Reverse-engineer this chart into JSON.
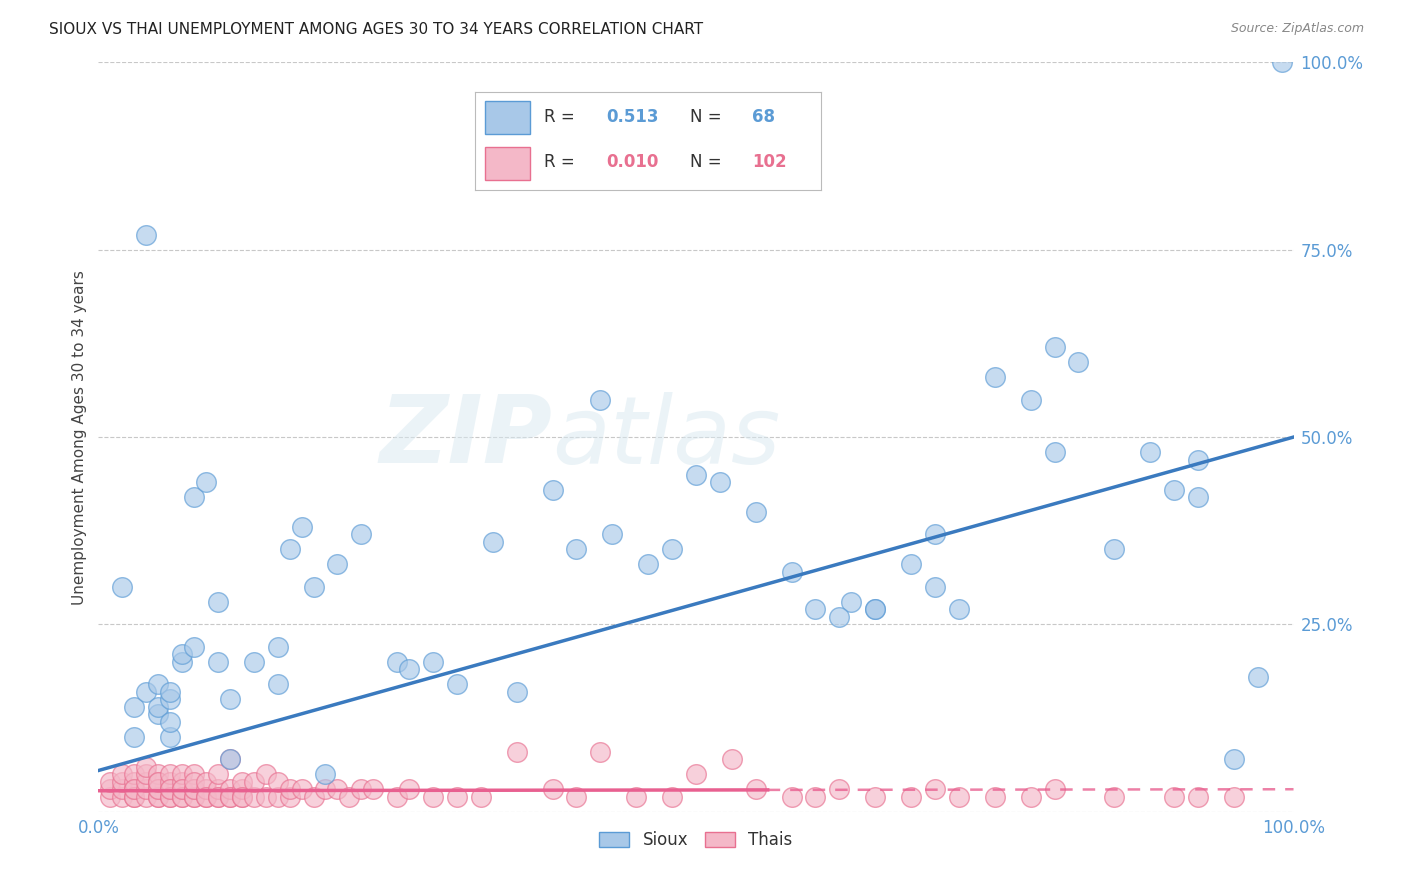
{
  "title": "SIOUX VS THAI UNEMPLOYMENT AMONG AGES 30 TO 34 YEARS CORRELATION CHART",
  "source": "Source: ZipAtlas.com",
  "ylabel": "Unemployment Among Ages 30 to 34 years",
  "xlim": [
    0,
    1.0
  ],
  "ylim": [
    0,
    1.0
  ],
  "sioux_color": "#a8c8e8",
  "sioux_edge_color": "#5b9bd5",
  "thais_color": "#f4b8c8",
  "thais_edge_color": "#e87090",
  "sioux_R": "0.513",
  "sioux_N": "68",
  "thais_R": "0.010",
  "thais_N": "102",
  "legend_label_sioux": "Sioux",
  "legend_label_thais": "Thais",
  "sioux_line_color": "#3a7abf",
  "thais_line_color": "#e86090",
  "background_color": "#ffffff",
  "grid_color": "#c8c8c8",
  "watermark": "ZIPatlas",
  "sioux_x": [
    0.02,
    0.03,
    0.04,
    0.04,
    0.05,
    0.05,
    0.05,
    0.06,
    0.06,
    0.06,
    0.07,
    0.07,
    0.08,
    0.09,
    0.1,
    0.1,
    0.11,
    0.11,
    0.13,
    0.15,
    0.15,
    0.16,
    0.17,
    0.18,
    0.19,
    0.2,
    0.22,
    0.25,
    0.26,
    0.28,
    0.3,
    0.33,
    0.35,
    0.38,
    0.4,
    0.42,
    0.43,
    0.46,
    0.48,
    0.5,
    0.52,
    0.55,
    0.58,
    0.6,
    0.63,
    0.65,
    0.68,
    0.7,
    0.72,
    0.75,
    0.78,
    0.8,
    0.82,
    0.85,
    0.88,
    0.9,
    0.92,
    0.95,
    0.97,
    0.99,
    0.03,
    0.06,
    0.08,
    0.62,
    0.65,
    0.7,
    0.8,
    0.92
  ],
  "sioux_y": [
    0.3,
    0.14,
    0.16,
    0.77,
    0.13,
    0.14,
    0.17,
    0.1,
    0.12,
    0.15,
    0.2,
    0.21,
    0.42,
    0.44,
    0.28,
    0.2,
    0.07,
    0.15,
    0.2,
    0.17,
    0.22,
    0.35,
    0.38,
    0.3,
    0.05,
    0.33,
    0.37,
    0.2,
    0.19,
    0.2,
    0.17,
    0.36,
    0.16,
    0.43,
    0.35,
    0.55,
    0.37,
    0.33,
    0.35,
    0.45,
    0.44,
    0.4,
    0.32,
    0.27,
    0.28,
    0.27,
    0.33,
    0.37,
    0.27,
    0.58,
    0.55,
    0.62,
    0.6,
    0.35,
    0.48,
    0.43,
    0.42,
    0.07,
    0.18,
    1.0,
    0.1,
    0.16,
    0.22,
    0.26,
    0.27,
    0.3,
    0.48,
    0.47
  ],
  "thais_x": [
    0.01,
    0.01,
    0.01,
    0.02,
    0.02,
    0.02,
    0.02,
    0.03,
    0.03,
    0.03,
    0.03,
    0.03,
    0.03,
    0.04,
    0.04,
    0.04,
    0.04,
    0.04,
    0.05,
    0.05,
    0.05,
    0.05,
    0.05,
    0.05,
    0.05,
    0.06,
    0.06,
    0.06,
    0.06,
    0.06,
    0.06,
    0.07,
    0.07,
    0.07,
    0.07,
    0.07,
    0.07,
    0.08,
    0.08,
    0.08,
    0.08,
    0.08,
    0.08,
    0.09,
    0.09,
    0.09,
    0.09,
    0.1,
    0.1,
    0.1,
    0.1,
    0.11,
    0.11,
    0.11,
    0.11,
    0.12,
    0.12,
    0.12,
    0.12,
    0.13,
    0.13,
    0.14,
    0.14,
    0.15,
    0.15,
    0.16,
    0.16,
    0.17,
    0.18,
    0.19,
    0.2,
    0.21,
    0.22,
    0.23,
    0.25,
    0.26,
    0.28,
    0.3,
    0.32,
    0.35,
    0.38,
    0.4,
    0.42,
    0.45,
    0.48,
    0.5,
    0.53,
    0.55,
    0.58,
    0.6,
    0.62,
    0.65,
    0.68,
    0.7,
    0.72,
    0.75,
    0.78,
    0.8,
    0.85,
    0.9,
    0.92,
    0.95
  ],
  "thais_y": [
    0.02,
    0.03,
    0.04,
    0.02,
    0.03,
    0.04,
    0.05,
    0.02,
    0.03,
    0.04,
    0.05,
    0.02,
    0.03,
    0.02,
    0.03,
    0.04,
    0.05,
    0.06,
    0.02,
    0.03,
    0.04,
    0.05,
    0.02,
    0.03,
    0.04,
    0.02,
    0.03,
    0.04,
    0.05,
    0.02,
    0.03,
    0.02,
    0.03,
    0.04,
    0.05,
    0.02,
    0.03,
    0.02,
    0.03,
    0.05,
    0.02,
    0.03,
    0.04,
    0.02,
    0.03,
    0.04,
    0.02,
    0.02,
    0.03,
    0.05,
    0.02,
    0.02,
    0.03,
    0.07,
    0.02,
    0.02,
    0.03,
    0.04,
    0.02,
    0.02,
    0.04,
    0.02,
    0.05,
    0.02,
    0.04,
    0.02,
    0.03,
    0.03,
    0.02,
    0.03,
    0.03,
    0.02,
    0.03,
    0.03,
    0.02,
    0.03,
    0.02,
    0.02,
    0.02,
    0.08,
    0.03,
    0.02,
    0.08,
    0.02,
    0.02,
    0.05,
    0.07,
    0.03,
    0.02,
    0.02,
    0.03,
    0.02,
    0.02,
    0.03,
    0.02,
    0.02,
    0.02,
    0.03,
    0.02,
    0.02,
    0.02,
    0.02
  ],
  "sioux_intercept": 0.055,
  "sioux_slope": 0.445,
  "thais_intercept": 0.028,
  "thais_slope": 0.002
}
